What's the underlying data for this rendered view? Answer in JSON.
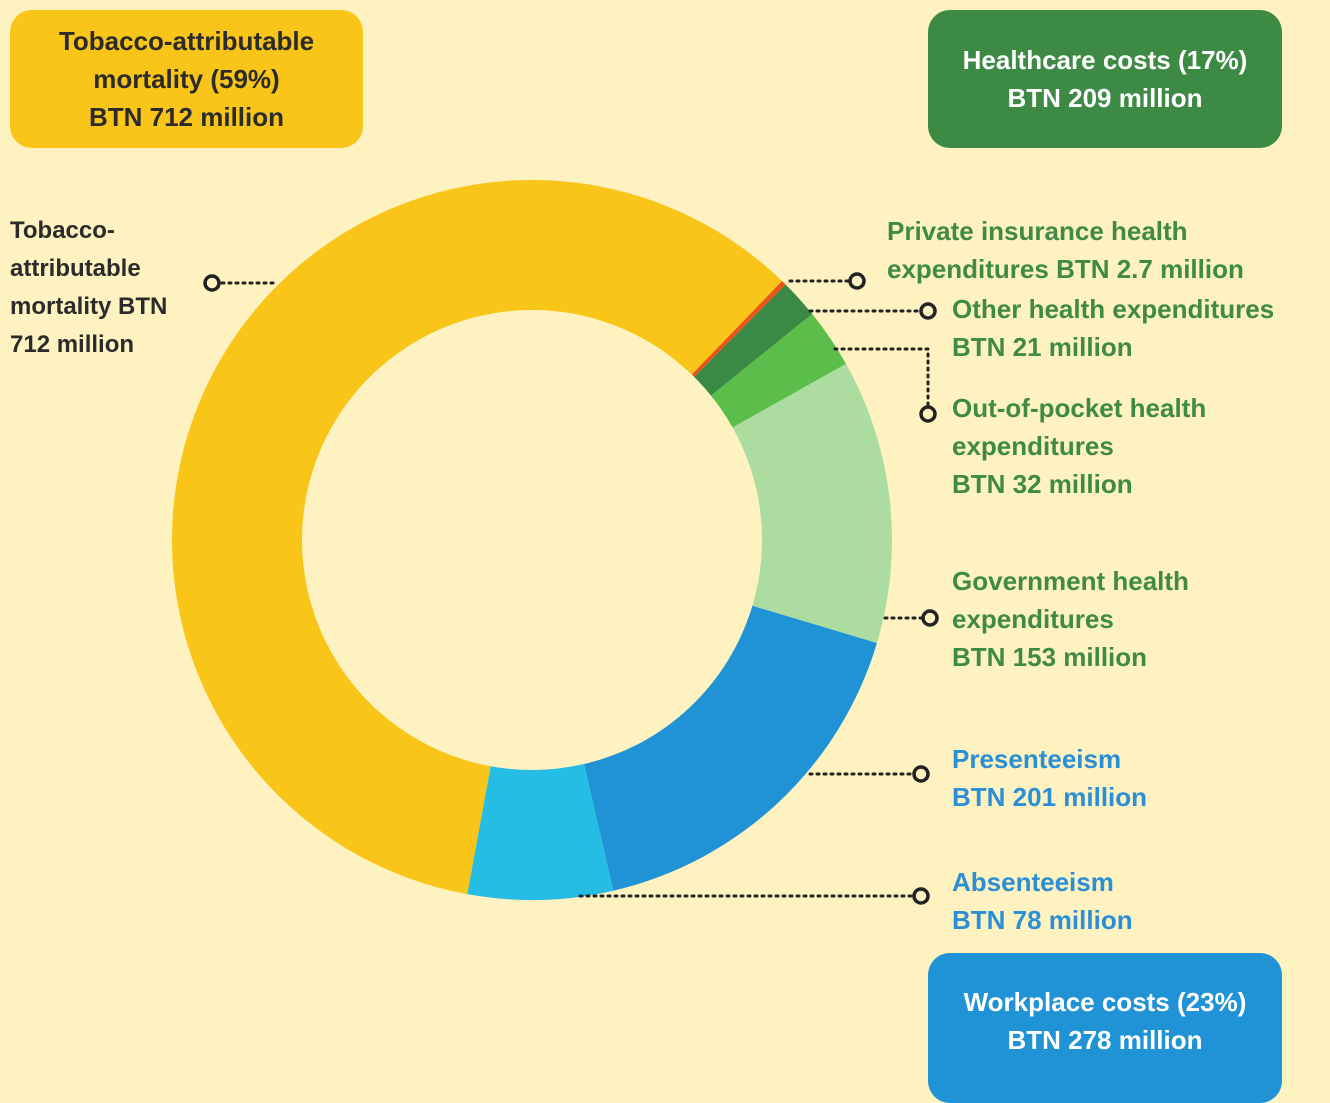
{
  "chart_data": {
    "type": "pie",
    "donut": true,
    "categories": [
      "Tobacco-attributable mortality",
      "Private insurance health expenditures",
      "Other health expenditures",
      "Out-of-pocket health expenditures",
      "Government health expenditures",
      "Presenteeism",
      "Absenteeism"
    ],
    "values": [
      712,
      2.7,
      21,
      32,
      153,
      201,
      78
    ],
    "value_labels": [
      "BTN 712 million",
      "BTN 2.7 million",
      "BTN 21 million",
      "BTN 32 million",
      "BTN 153 million",
      "BTN 201 million",
      "BTN 78 million"
    ],
    "colors": [
      "#f8c518",
      "#e8541a",
      "#3a8a45",
      "#5bbd4a",
      "#acdca0",
      "#2092d6",
      "#25bde4"
    ],
    "label_colors": [
      "#2b2b2b",
      "#3f8a45",
      "#3f8a45",
      "#3f8a45",
      "#3f8a45",
      "#2a8fd6",
      "#2a8fd6"
    ],
    "groups": [
      {
        "title": "Tobacco-attributable mortality",
        "share": "(59%)",
        "total": "BTN 712 million",
        "color": "#f8c518",
        "text_color": "#2b2b2b"
      },
      {
        "title": "Healthcare costs",
        "share": "(17%)",
        "total": "BTN 209 million",
        "color": "#3d8a45",
        "text_color": "#ffffff"
      },
      {
        "title": "Workplace costs",
        "share": "(23%)",
        "total": "BTN 278 million",
        "color": "#2092d6",
        "text_color": "#ffffff"
      }
    ]
  }
}
